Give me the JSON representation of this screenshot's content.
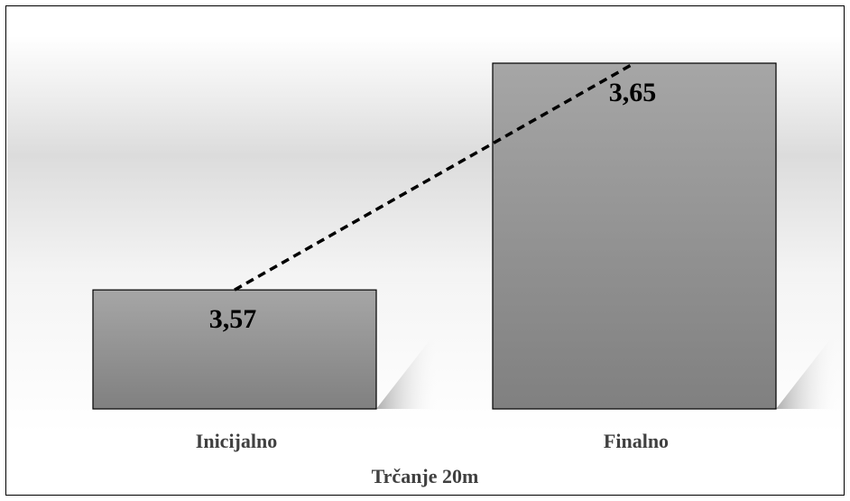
{
  "chart_data": {
    "type": "bar",
    "categories": [
      "Inicijalno",
      "Finalno"
    ],
    "values": [
      3.57,
      3.65
    ],
    "data_labels": [
      "3,57",
      "3,65"
    ],
    "xlabel": "Trčanje 20m",
    "trendline": {
      "style": "dashed",
      "color": "#000000"
    },
    "grid": false,
    "legend": "none"
  },
  "colors": {
    "bar_fill_top": "#a6a6a6",
    "bar_fill_bottom": "#7f7f7f",
    "bar_stroke": "#000000",
    "label_color": "#404040"
  }
}
